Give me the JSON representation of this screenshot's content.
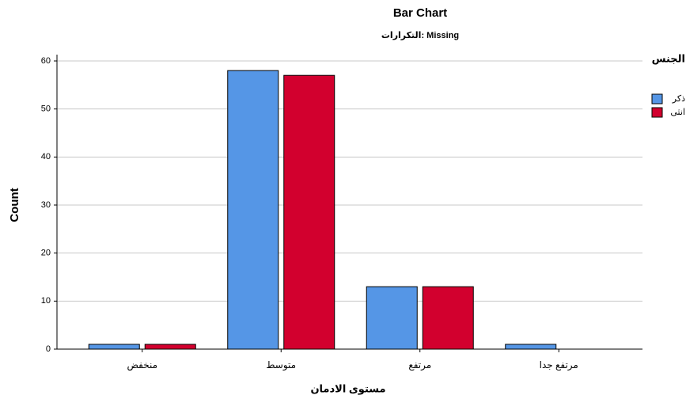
{
  "chart_data": {
    "type": "grouped-bar",
    "title": "Bar Chart",
    "subtitle": "التكرارات: Missing",
    "x_label": "مستوى الادمان",
    "y_label": "Count",
    "legend_title": "الجنس",
    "categories": [
      "منخفض",
      "متوسط",
      "مرتفع",
      "مرتفع جدا"
    ],
    "series": [
      {
        "name": "ذكر",
        "color": "#5596e6",
        "values": [
          1,
          58,
          13,
          1
        ]
      },
      {
        "name": "انثى",
        "color": "#d2002e",
        "values": [
          1,
          57,
          13,
          null
        ]
      }
    ],
    "ylim": [
      0,
      60
    ],
    "yticks": [
      0,
      10,
      20,
      30,
      40,
      50,
      60
    ],
    "grid": true,
    "legend": "right"
  }
}
